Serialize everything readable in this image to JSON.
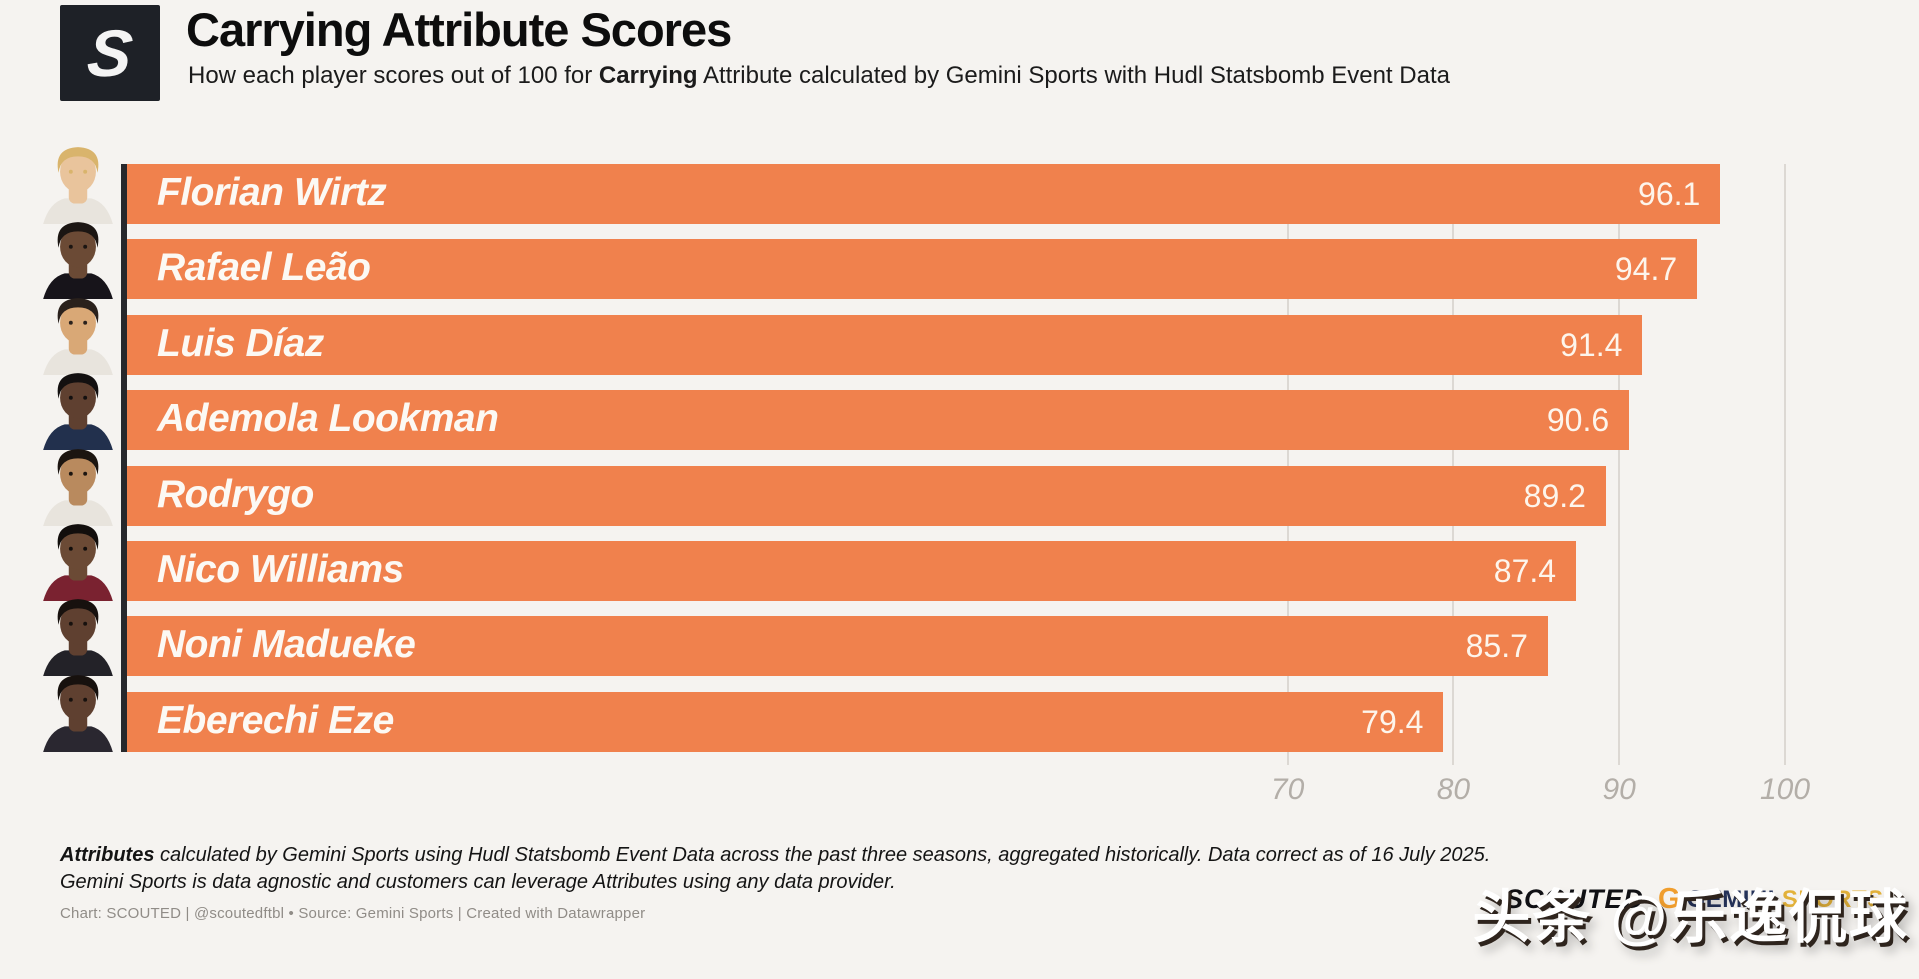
{
  "header": {
    "logo_letter": "S",
    "title": "Carrying Attribute Scores",
    "subtitle_prefix": "How each player scores out of 100 for ",
    "subtitle_bold": "Carrying",
    "subtitle_suffix": " Attribute calculated by Gemini Sports with Hudl Statsbomb Event Data"
  },
  "chart_data": {
    "type": "bar",
    "orientation": "horizontal",
    "title": "Carrying Attribute Scores",
    "subtitle": "How each player scores out of 100 for Carrying Attribute calculated by Gemini Sports with Hudl Statsbomb Event Data",
    "categories": [
      "Florian Wirtz",
      "Rafael Leão",
      "Luis Díaz",
      "Ademola Lookman",
      "Rodrygo",
      "Nico Williams",
      "Noni Madueke",
      "Eberechi Eze"
    ],
    "values": [
      96.1,
      94.7,
      91.4,
      90.6,
      89.2,
      87.4,
      85.7,
      79.4
    ],
    "xlim": [
      0,
      100
    ],
    "x_ticks": [
      70,
      80,
      90,
      100
    ],
    "bar_color": "#F0814D",
    "grid": true,
    "legend": "none",
    "value_label_position": "inside-end",
    "avatars": [
      {
        "skin": "#e9c49c",
        "hair": "#d9b46c",
        "shirt": "#e8e4dd"
      },
      {
        "skin": "#6b4a35",
        "hair": "#1b1512",
        "shirt": "#17141a"
      },
      {
        "skin": "#d9a876",
        "hair": "#2a211c",
        "shirt": "#e8e4dd"
      },
      {
        "skin": "#5f4030",
        "hair": "#131010",
        "shirt": "#22304d"
      },
      {
        "skin": "#b98a5e",
        "hair": "#1c1510",
        "shirt": "#e8e4dd"
      },
      {
        "skin": "#6b4a35",
        "hair": "#120e0c",
        "shirt": "#7a2230"
      },
      {
        "skin": "#5f4030",
        "hair": "#17110e",
        "shirt": "#232228"
      },
      {
        "skin": "#5f4030",
        "hair": "#17110e",
        "shirt": "#2a2730"
      }
    ]
  },
  "footer": {
    "note1_bold": "Attributes",
    "note1_rest": " calculated by Gemini Sports using Hudl Statsbomb Event Data across the past three seasons, aggregated historically. Data correct as of 16 July 2025.",
    "note2": "Gemini Sports is data agnostic and customers can leverage Attributes using any data provider.",
    "credit": "Chart: SCOUTED | @scoutedftbl • Source: Gemini Sports | Created with Datawrapper"
  },
  "branding": {
    "scouted": "SCOUTED",
    "gemini_g": "G",
    "gemini": "GEMINI",
    "sports": "SPORTS"
  },
  "watermark_text": "头条 @乐逸侃球"
}
